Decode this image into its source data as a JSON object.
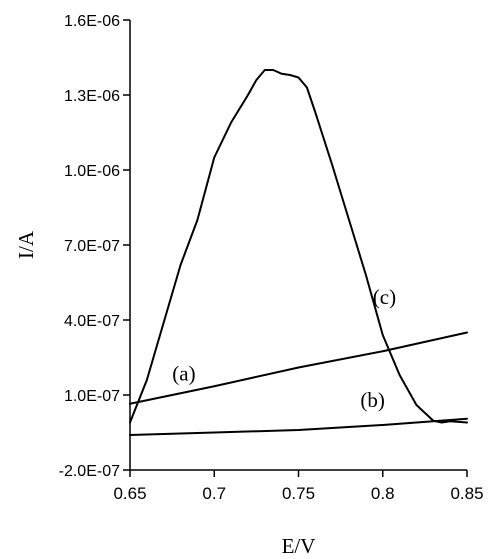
{
  "chart_data": {
    "type": "line",
    "xlabel": "E/V",
    "ylabel": "I/A",
    "xlim": [
      0.65,
      0.85
    ],
    "ylim": [
      -2e-07,
      1.6e-06
    ],
    "x_ticks": [
      0.65,
      0.7,
      0.75,
      0.8,
      0.85
    ],
    "x_tick_labels": [
      "0.65",
      "0.7",
      "0.75",
      "0.8",
      "0.85"
    ],
    "y_ticks": [
      -2e-07,
      1e-07,
      4e-07,
      7e-07,
      1e-06,
      1.3e-06,
      1.6e-06
    ],
    "y_tick_labels": [
      "-2.0E-07",
      "1.0E-07",
      "4.0E-07",
      "7.0E-07",
      "1.0E-06",
      "1.3E-06",
      "1.6E-06"
    ],
    "grid": false,
    "legend": "none",
    "series": [
      {
        "label": "(a)",
        "x": [
          0.65,
          0.7,
          0.75,
          0.8,
          0.85
        ],
        "y": [
          6.5e-08,
          1.35e-07,
          2.1e-07,
          2.75e-07,
          3.5e-07
        ]
      },
      {
        "label": "(b)",
        "x": [
          0.65,
          0.7,
          0.75,
          0.8,
          0.85
        ],
        "y": [
          -6e-08,
          -5e-08,
          -4e-08,
          -2e-08,
          5e-09
        ]
      },
      {
        "label": "(c)",
        "x": [
          0.65,
          0.66,
          0.67,
          0.68,
          0.69,
          0.7,
          0.71,
          0.72,
          0.725,
          0.73,
          0.735,
          0.74,
          0.745,
          0.75,
          0.755,
          0.76,
          0.77,
          0.78,
          0.79,
          0.8,
          0.81,
          0.82,
          0.83,
          0.835,
          0.84,
          0.85
        ],
        "y": [
          -1e-08,
          1.6e-07,
          3.9e-07,
          6.2e-07,
          8e-07,
          1.05e-06,
          1.19e-06,
          1.3e-06,
          1.36e-06,
          1.4e-06,
          1.4e-06,
          1.385e-06,
          1.38e-06,
          1.37e-06,
          1.33e-06,
          1.23e-06,
          1.02e-06,
          8e-07,
          5.8e-07,
          3.4e-07,
          1.8e-07,
          6e-08,
          -3e-09,
          -1e-08,
          -5e-09,
          -1e-08
        ]
      }
    ]
  }
}
